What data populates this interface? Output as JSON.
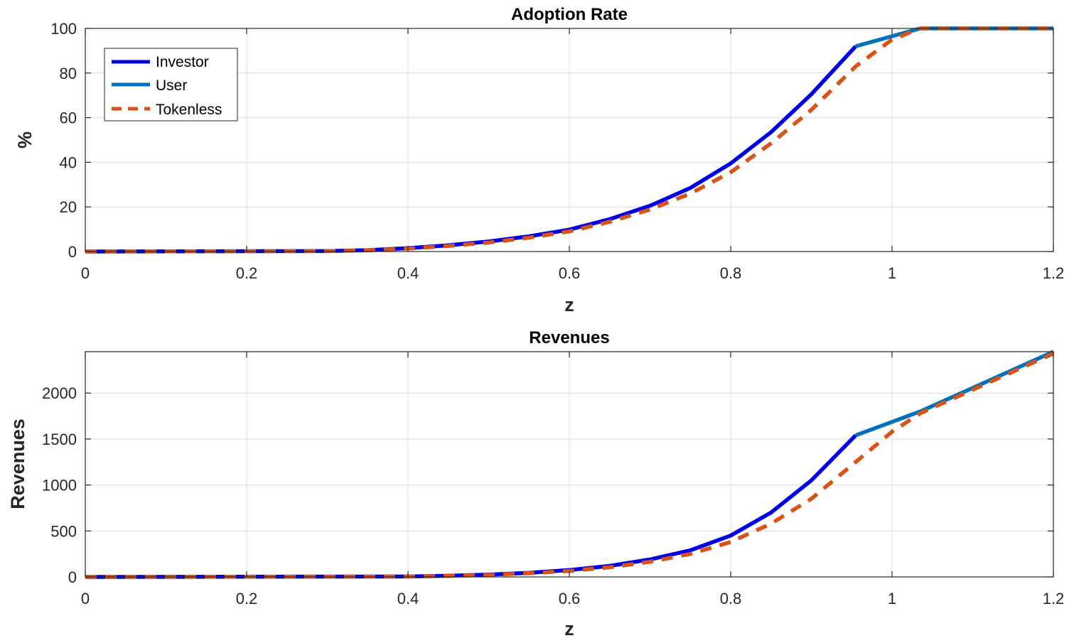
{
  "chart_data": [
    {
      "type": "line",
      "title": "Adoption Rate",
      "xlabel": "z",
      "ylabel": "%",
      "xlim": [
        0,
        1.2
      ],
      "ylim": [
        0,
        100
      ],
      "xticks": [
        0,
        0.2,
        0.4,
        0.6,
        0.8,
        1,
        1.2
      ],
      "xtick_labels": [
        "0",
        "0.2",
        "0.4",
        "0.6",
        "0.8",
        "1",
        "1.2"
      ],
      "yticks": [
        0,
        20,
        40,
        60,
        80,
        100
      ],
      "ytick_labels": [
        "0",
        "20",
        "40",
        "60",
        "80",
        "100"
      ],
      "grid": true,
      "legend": "top-left",
      "series": [
        {
          "name": "Investor",
          "color": "#0000e6",
          "style": "solid",
          "x": [
            0,
            0.3,
            0.35,
            0.4,
            0.45,
            0.5,
            0.55,
            0.6,
            0.65,
            0.7,
            0.75,
            0.8,
            0.85,
            0.9,
            0.955
          ],
          "y": [
            0,
            0.2,
            0.6,
            1.5,
            2.8,
            4.5,
            6.8,
            9.8,
            14.5,
            20.5,
            28.5,
            39.5,
            53.5,
            70.5,
            92
          ]
        },
        {
          "name": "User",
          "color": "#0072bd",
          "style": "solid",
          "x": [
            0.955,
            1.035,
            1.2
          ],
          "y": [
            92,
            100,
            100
          ]
        },
        {
          "name": "Tokenless",
          "color": "#d95319",
          "style": "dashed",
          "x": [
            0,
            0.3,
            0.35,
            0.4,
            0.45,
            0.5,
            0.55,
            0.6,
            0.65,
            0.7,
            0.75,
            0.8,
            0.85,
            0.9,
            0.955,
            1.0,
            1.035,
            1.2
          ],
          "y": [
            0,
            0.2,
            0.5,
            1.3,
            2.5,
            4.0,
            6.2,
            9.0,
            13.3,
            18.8,
            26.0,
            35.5,
            48.5,
            63.5,
            83,
            95,
            100,
            100
          ]
        }
      ]
    },
    {
      "type": "line",
      "title": "Revenues",
      "xlabel": "z",
      "ylabel": "Revenues",
      "xlim": [
        0,
        1.2
      ],
      "ylim": [
        0,
        2450
      ],
      "xticks": [
        0,
        0.2,
        0.4,
        0.6,
        0.8,
        1,
        1.2
      ],
      "xtick_labels": [
        "0",
        "0.2",
        "0.4",
        "0.6",
        "0.8",
        "1",
        "1.2"
      ],
      "yticks": [
        0,
        500,
        1000,
        1500,
        2000
      ],
      "ytick_labels": [
        "0",
        "500",
        "1000",
        "1500",
        "2000"
      ],
      "grid": true,
      "series": [
        {
          "name": "Investor",
          "color": "#0000e6",
          "style": "solid",
          "x": [
            0,
            0.4,
            0.45,
            0.5,
            0.55,
            0.6,
            0.65,
            0.7,
            0.75,
            0.8,
            0.85,
            0.9,
            0.955
          ],
          "y": [
            0,
            5,
            12,
            25,
            45,
            75,
            120,
            190,
            290,
            450,
            700,
            1050,
            1540
          ]
        },
        {
          "name": "User",
          "color": "#0072bd",
          "style": "solid",
          "x": [
            0.955,
            1.035,
            1.2
          ],
          "y": [
            1540,
            1800,
            2450
          ]
        },
        {
          "name": "Tokenless",
          "color": "#d95319",
          "style": "dashed",
          "x": [
            0,
            0.4,
            0.45,
            0.5,
            0.55,
            0.6,
            0.65,
            0.7,
            0.75,
            0.8,
            0.85,
            0.9,
            0.955,
            1.0,
            1.035,
            1.2
          ],
          "y": [
            0,
            4,
            10,
            22,
            40,
            65,
            105,
            165,
            250,
            380,
            580,
            850,
            1250,
            1580,
            1780,
            2430
          ]
        }
      ]
    }
  ]
}
